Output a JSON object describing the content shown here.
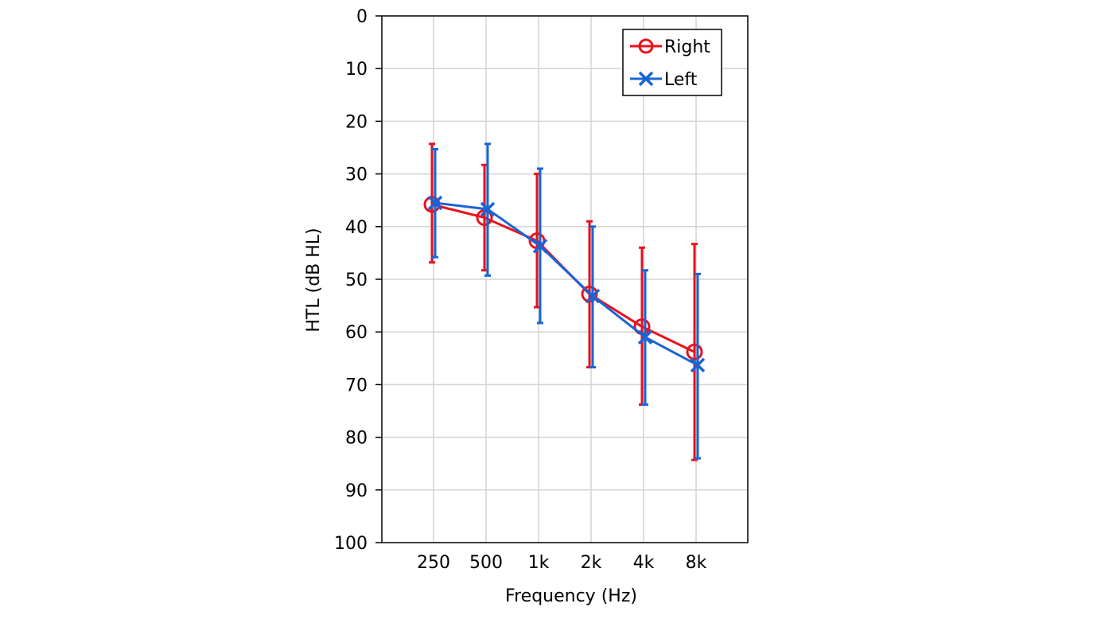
{
  "chart_data": {
    "type": "line",
    "categories": [
      "250",
      "500",
      "1k",
      "2k",
      "4k",
      "8k"
    ],
    "xlabel": "Frequency (Hz)",
    "ylabel": "HTL (dB HL)",
    "ylim": [
      0,
      100
    ],
    "y_inverted": true,
    "yticks": [
      0,
      10,
      20,
      30,
      40,
      50,
      60,
      70,
      80,
      90,
      100
    ],
    "grid": true,
    "legend": "top-right",
    "series": [
      {
        "name": "Right",
        "marker": "circle",
        "color": "#e8121c",
        "values": [
          35.8,
          38.3,
          42.7,
          52.8,
          59.0,
          63.8
        ],
        "error_low": [
          24.3,
          28.3,
          30.0,
          39.0,
          44.0,
          43.3
        ],
        "error_high": [
          46.8,
          48.3,
          55.3,
          66.7,
          73.8,
          84.3
        ]
      },
      {
        "name": "Left",
        "marker": "x",
        "color": "#1a64d6",
        "values": [
          35.5,
          36.7,
          43.7,
          53.2,
          61.0,
          66.3
        ],
        "error_low": [
          25.3,
          24.3,
          29.0,
          40.0,
          48.3,
          49.0
        ],
        "error_high": [
          45.8,
          49.3,
          58.3,
          66.7,
          73.8,
          84.0
        ]
      }
    ]
  }
}
